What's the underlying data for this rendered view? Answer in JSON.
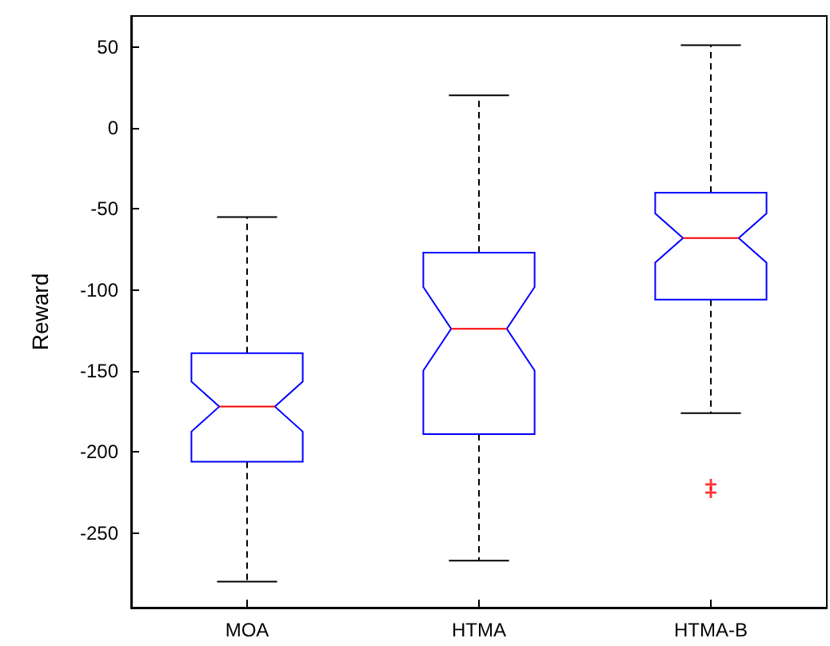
{
  "chart_data": {
    "type": "box",
    "ylabel": "Reward",
    "categories": [
      "MOA",
      "HTMA",
      "HTMA-B"
    ],
    "boxes": [
      {
        "low": -280,
        "q1": -206,
        "median": -172,
        "q3": -139,
        "high": -55
      },
      {
        "low": -267,
        "q1": -189,
        "median": -124,
        "q3": -77,
        "high": 20
      },
      {
        "low": -176,
        "q1": -106,
        "median": -68,
        "q3": -40,
        "high": 51,
        "outliers": [
          -220,
          -225
        ]
      }
    ],
    "ylim": [
      -296,
      69
    ],
    "yticks": [
      -250,
      -200,
      -150,
      -100,
      -50,
      0,
      50
    ],
    "grid": false
  }
}
